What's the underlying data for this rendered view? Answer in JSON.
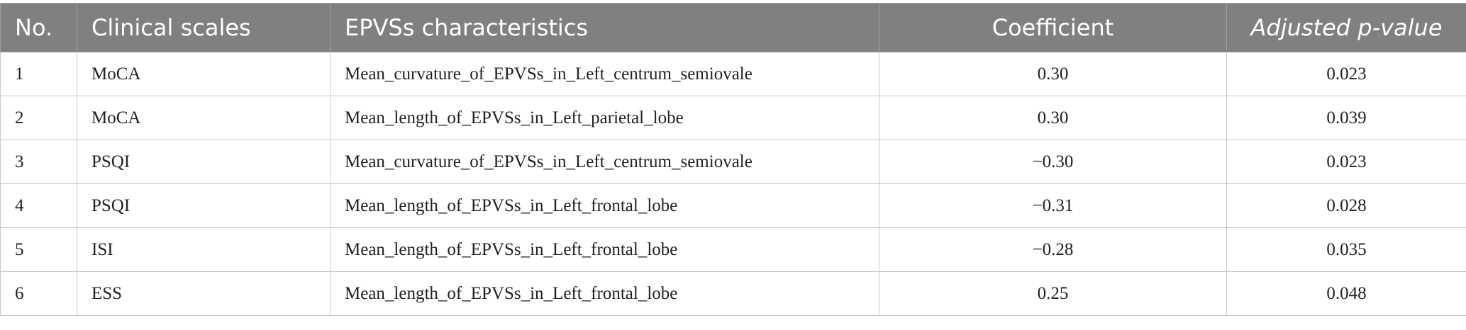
{
  "table": {
    "header": [
      "No.",
      "Clinical scales",
      "EPVSs characteristics",
      "Coefficient",
      "Adjusted p-value"
    ],
    "rows": [
      [
        "1",
        "MoCA",
        "Mean_curvature_of_EPVSs_in_Left_centrum_semiovale",
        "0.30",
        "0.023"
      ],
      [
        "2",
        "MoCA",
        "Mean_length_of_EPVSs_in_Left_parietal_lobe",
        "0.30",
        "0.039"
      ],
      [
        "3",
        "PSQI",
        "Mean_curvature_of_EPVSs_in_Left_centrum_semiovale",
        "−0.30",
        "0.023"
      ],
      [
        "4",
        "PSQI",
        "Mean_length_of_EPVSs_in_Left_frontal_lobe",
        "−0.31",
        "0.028"
      ],
      [
        "5",
        "ISI",
        "Mean_length_of_EPVSs_in_Left_frontal_lobe",
        "−0.28",
        "0.035"
      ],
      [
        "6",
        "ESS",
        "Mean_length_of_EPVSs_in_Left_frontal_lobe",
        "0.25",
        "0.048"
      ]
    ]
  }
}
